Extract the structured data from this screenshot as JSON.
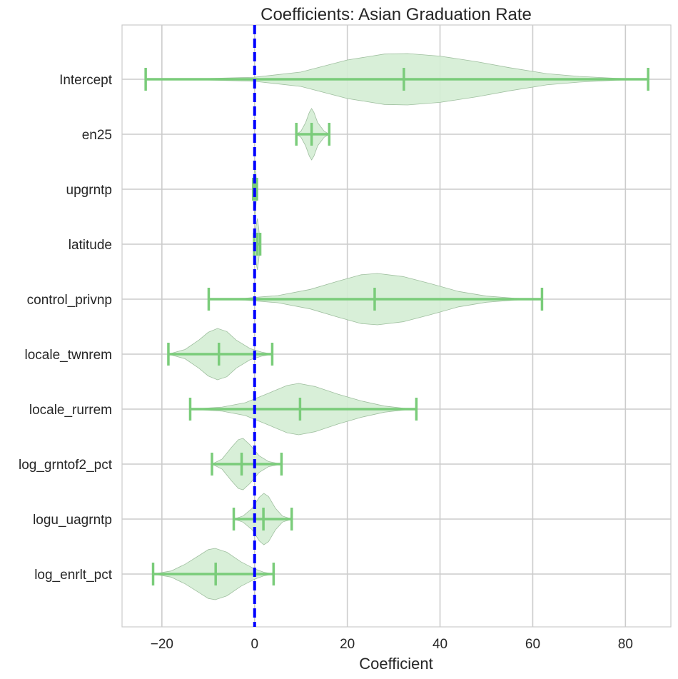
{
  "chart_data": {
    "type": "violin",
    "title": "Coefficients: Asian Graduation Rate",
    "xlabel": "Coefficient",
    "ylabel": "",
    "xlim": [
      -28.6,
      89.8
    ],
    "xticks": [
      -20,
      0,
      20,
      40,
      60,
      80
    ],
    "xtick_labels": [
      "−20",
      "0",
      "20",
      "40",
      "60",
      "80"
    ],
    "grid": true,
    "reference_line": {
      "x": 0,
      "color": "#0000ff",
      "style": "dashed"
    },
    "colors": {
      "violin_fill": "#d4edd4",
      "violin_edge": "#9fbf9f",
      "whisker": "#7acc7a",
      "grid": "#cccccc"
    },
    "categories": [
      "Intercept",
      "en25",
      "upgrntp",
      "latitude",
      "control_privnp",
      "locale_twnrem",
      "locale_rurrem",
      "log_grntof2_pct",
      "logu_uagrntp",
      "log_enrlt_pct"
    ],
    "series": [
      {
        "label": "Intercept",
        "min": -23.5,
        "median": 32.2,
        "max": 84.9,
        "density": [
          [
            -23.5,
            0.0
          ],
          [
            -10,
            0.03
          ],
          [
            0,
            0.08
          ],
          [
            10,
            0.28
          ],
          [
            20,
            0.75
          ],
          [
            28,
            0.98
          ],
          [
            33,
            1.0
          ],
          [
            40,
            0.9
          ],
          [
            48,
            0.68
          ],
          [
            55,
            0.45
          ],
          [
            63,
            0.22
          ],
          [
            70,
            0.11
          ],
          [
            78,
            0.04
          ],
          [
            84.9,
            0.0
          ]
        ]
      },
      {
        "label": "en25",
        "min": 9.0,
        "median": 12.3,
        "max": 16.1,
        "density": [
          [
            9.0,
            0.0
          ],
          [
            10,
            0.12
          ],
          [
            11,
            0.45
          ],
          [
            11.8,
            0.85
          ],
          [
            12.3,
            1.0
          ],
          [
            12.8,
            0.85
          ],
          [
            13.6,
            0.45
          ],
          [
            15,
            0.12
          ],
          [
            16.1,
            0.0
          ]
        ]
      },
      {
        "label": "upgrntp",
        "min": -0.3,
        "median": 0.1,
        "max": 0.5,
        "density": [
          [
            -0.3,
            0.0
          ],
          [
            -0.1,
            0.6
          ],
          [
            0.1,
            1.0
          ],
          [
            0.3,
            0.6
          ],
          [
            0.5,
            0.0
          ]
        ]
      },
      {
        "label": "latitude",
        "min": -0.1,
        "median": 0.6,
        "max": 1.2,
        "density": [
          [
            -0.1,
            0.0
          ],
          [
            0.2,
            0.6
          ],
          [
            0.6,
            1.0
          ],
          [
            0.9,
            0.6
          ],
          [
            1.2,
            0.0
          ]
        ]
      },
      {
        "label": "control_privnp",
        "min": -9.9,
        "median": 25.9,
        "max": 62.0,
        "density": [
          [
            -9.9,
            0.0
          ],
          [
            -2,
            0.04
          ],
          [
            5,
            0.14
          ],
          [
            12,
            0.38
          ],
          [
            18,
            0.7
          ],
          [
            23,
            0.95
          ],
          [
            26.5,
            1.0
          ],
          [
            32,
            0.88
          ],
          [
            38,
            0.6
          ],
          [
            44,
            0.3
          ],
          [
            50,
            0.12
          ],
          [
            56,
            0.04
          ],
          [
            62.0,
            0.0
          ]
        ]
      },
      {
        "label": "locale_twnrem",
        "min": -18.6,
        "median": -7.7,
        "max": 3.8,
        "density": [
          [
            -18.6,
            0.0
          ],
          [
            -15,
            0.18
          ],
          [
            -12,
            0.55
          ],
          [
            -10,
            0.85
          ],
          [
            -8,
            1.0
          ],
          [
            -6,
            0.88
          ],
          [
            -4,
            0.55
          ],
          [
            -1,
            0.22
          ],
          [
            1.5,
            0.08
          ],
          [
            3.8,
            0.0
          ]
        ]
      },
      {
        "label": "locale_rurrem",
        "min": -13.9,
        "median": 9.8,
        "max": 34.9,
        "density": [
          [
            -13.9,
            0.0
          ],
          [
            -7,
            0.08
          ],
          [
            -2,
            0.25
          ],
          [
            3,
            0.62
          ],
          [
            7,
            0.92
          ],
          [
            9.5,
            1.0
          ],
          [
            13,
            0.88
          ],
          [
            18,
            0.58
          ],
          [
            23,
            0.32
          ],
          [
            28,
            0.12
          ],
          [
            32,
            0.04
          ],
          [
            34.9,
            0.0
          ]
        ]
      },
      {
        "label": "log_grntof2_pct",
        "min": -9.2,
        "median": -2.8,
        "max": 5.8,
        "density": [
          [
            -9.2,
            0.0
          ],
          [
            -7,
            0.2
          ],
          [
            -5,
            0.65
          ],
          [
            -3.5,
            0.95
          ],
          [
            -2.5,
            1.0
          ],
          [
            -1,
            0.75
          ],
          [
            1,
            0.32
          ],
          [
            3,
            0.1
          ],
          [
            5.8,
            0.0
          ]
        ]
      },
      {
        "label": "logu_uagrntp",
        "min": -4.5,
        "median": 1.9,
        "max": 8.0,
        "density": [
          [
            -4.5,
            0.0
          ],
          [
            -2.5,
            0.12
          ],
          [
            -0.5,
            0.42
          ],
          [
            1,
            0.85
          ],
          [
            2,
            1.0
          ],
          [
            3,
            0.88
          ],
          [
            4.5,
            0.42
          ],
          [
            6,
            0.12
          ],
          [
            8.0,
            0.0
          ]
        ]
      },
      {
        "label": "log_enrlt_pct",
        "min": -21.9,
        "median": -8.4,
        "max": 4.1,
        "density": [
          [
            -21.9,
            0.0
          ],
          [
            -18,
            0.12
          ],
          [
            -15,
            0.38
          ],
          [
            -12,
            0.72
          ],
          [
            -10,
            0.95
          ],
          [
            -8.5,
            1.0
          ],
          [
            -6,
            0.85
          ],
          [
            -3,
            0.48
          ],
          [
            0,
            0.2
          ],
          [
            2,
            0.07
          ],
          [
            4.1,
            0.0
          ]
        ]
      }
    ]
  }
}
